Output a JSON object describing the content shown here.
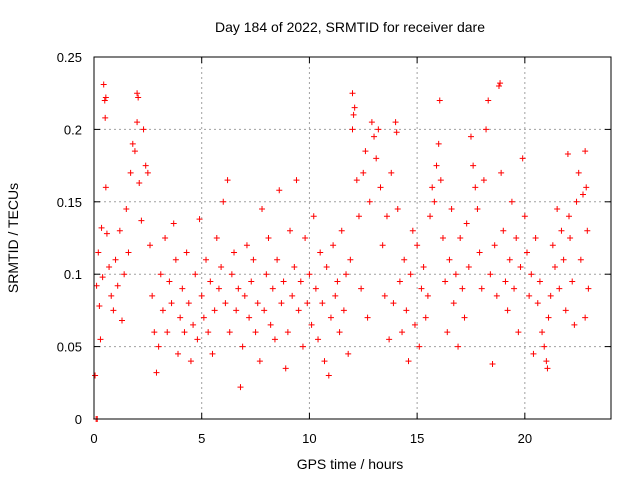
{
  "chart_data": {
    "type": "scatter",
    "title": "Day 184 of 2022, SRMTID for receiver dare",
    "xlabel": "GPS time / hours",
    "ylabel": "SRMTID / TECUs",
    "xlim": [
      0,
      24
    ],
    "ylim": [
      0,
      0.25
    ],
    "grid": true,
    "marker": "plus",
    "color": "#ff0000",
    "x_ticks": [
      {
        "value": 0,
        "label": "0"
      },
      {
        "value": 5,
        "label": "5"
      },
      {
        "value": 10,
        "label": "10"
      },
      {
        "value": 15,
        "label": "15"
      },
      {
        "value": 20,
        "label": "20"
      }
    ],
    "y_ticks": [
      {
        "value": 0,
        "label": "0"
      },
      {
        "value": 0.05,
        "label": "0.05"
      },
      {
        "value": 0.1,
        "label": "0.1"
      },
      {
        "value": 0.15,
        "label": "0.15"
      },
      {
        "value": 0.2,
        "label": "0.2"
      },
      {
        "value": 0.25,
        "label": "0.25"
      }
    ],
    "series": [
      {
        "name": "SRMTID",
        "points": [
          [
            0.05,
            0.03
          ],
          [
            0.1,
            0.0
          ],
          [
            0.15,
            0.0
          ],
          [
            0.12,
            0.092
          ],
          [
            0.2,
            0.115
          ],
          [
            0.25,
            0.078
          ],
          [
            0.3,
            0.055
          ],
          [
            0.35,
            0.132
          ],
          [
            0.4,
            0.098
          ],
          [
            0.45,
            0.231
          ],
          [
            0.5,
            0.22
          ],
          [
            0.55,
            0.222
          ],
          [
            0.52,
            0.208
          ],
          [
            0.55,
            0.16
          ],
          [
            0.6,
            0.128
          ],
          [
            0.7,
            0.105
          ],
          [
            0.8,
            0.085
          ],
          [
            0.9,
            0.075
          ],
          [
            1.0,
            0.11
          ],
          [
            1.1,
            0.092
          ],
          [
            1.2,
            0.13
          ],
          [
            1.3,
            0.068
          ],
          [
            1.4,
            0.1
          ],
          [
            1.5,
            0.145
          ],
          [
            1.6,
            0.115
          ],
          [
            1.7,
            0.17
          ],
          [
            1.8,
            0.19
          ],
          [
            1.9,
            0.185
          ],
          [
            2.0,
            0.225
          ],
          [
            2.05,
            0.222
          ],
          [
            2.0,
            0.205
          ],
          [
            2.1,
            0.163
          ],
          [
            2.2,
            0.137
          ],
          [
            2.3,
            0.2
          ],
          [
            2.4,
            0.175
          ],
          [
            2.5,
            0.17
          ],
          [
            2.6,
            0.12
          ],
          [
            2.7,
            0.085
          ],
          [
            2.8,
            0.06
          ],
          [
            2.9,
            0.032
          ],
          [
            3.0,
            0.05
          ],
          [
            3.1,
            0.1
          ],
          [
            3.2,
            0.075
          ],
          [
            3.3,
            0.125
          ],
          [
            3.4,
            0.06
          ],
          [
            3.5,
            0.095
          ],
          [
            3.6,
            0.08
          ],
          [
            3.7,
            0.135
          ],
          [
            3.8,
            0.11
          ],
          [
            3.9,
            0.045
          ],
          [
            4.0,
            0.07
          ],
          [
            4.1,
            0.09
          ],
          [
            4.2,
            0.06
          ],
          [
            4.3,
            0.115
          ],
          [
            4.4,
            0.08
          ],
          [
            4.5,
            0.04
          ],
          [
            4.6,
            0.065
          ],
          [
            4.7,
            0.1
          ],
          [
            4.8,
            0.055
          ],
          [
            4.9,
            0.138
          ],
          [
            5.0,
            0.085
          ],
          [
            5.1,
            0.07
          ],
          [
            5.2,
            0.11
          ],
          [
            5.3,
            0.06
          ],
          [
            5.4,
            0.095
          ],
          [
            5.5,
            0.045
          ],
          [
            5.6,
            0.075
          ],
          [
            5.7,
            0.125
          ],
          [
            5.8,
            0.09
          ],
          [
            5.9,
            0.105
          ],
          [
            6.0,
            0.15
          ],
          [
            6.1,
            0.08
          ],
          [
            6.2,
            0.165
          ],
          [
            6.3,
            0.06
          ],
          [
            6.4,
            0.1
          ],
          [
            6.5,
            0.115
          ],
          [
            6.6,
            0.075
          ],
          [
            6.7,
            0.09
          ],
          [
            6.8,
            0.022
          ],
          [
            6.9,
            0.05
          ],
          [
            7.0,
            0.085
          ],
          [
            7.1,
            0.12
          ],
          [
            7.2,
            0.07
          ],
          [
            7.3,
            0.095
          ],
          [
            7.4,
            0.11
          ],
          [
            7.5,
            0.06
          ],
          [
            7.6,
            0.08
          ],
          [
            7.7,
            0.04
          ],
          [
            7.8,
            0.145
          ],
          [
            7.9,
            0.075
          ],
          [
            8.0,
            0.1
          ],
          [
            8.1,
            0.125
          ],
          [
            8.2,
            0.065
          ],
          [
            8.3,
            0.09
          ],
          [
            8.4,
            0.055
          ],
          [
            8.5,
            0.11
          ],
          [
            8.6,
            0.158
          ],
          [
            8.7,
            0.08
          ],
          [
            8.8,
            0.095
          ],
          [
            8.9,
            0.035
          ],
          [
            9.0,
            0.06
          ],
          [
            9.1,
            0.13
          ],
          [
            9.2,
            0.085
          ],
          [
            9.3,
            0.105
          ],
          [
            9.4,
            0.165
          ],
          [
            9.5,
            0.075
          ],
          [
            9.6,
            0.095
          ],
          [
            9.7,
            0.05
          ],
          [
            9.8,
            0.125
          ],
          [
            9.9,
            0.08
          ],
          [
            10.0,
            0.1
          ],
          [
            10.1,
            0.065
          ],
          [
            10.2,
            0.14
          ],
          [
            10.3,
            0.09
          ],
          [
            10.4,
            0.055
          ],
          [
            10.5,
            0.115
          ],
          [
            10.6,
            0.08
          ],
          [
            10.7,
            0.04
          ],
          [
            10.8,
            0.105
          ],
          [
            10.9,
            0.03
          ],
          [
            11.0,
            0.07
          ],
          [
            11.1,
            0.12
          ],
          [
            11.2,
            0.085
          ],
          [
            11.3,
            0.095
          ],
          [
            11.4,
            0.06
          ],
          [
            11.5,
            0.13
          ],
          [
            11.6,
            0.075
          ],
          [
            11.7,
            0.1
          ],
          [
            11.8,
            0.045
          ],
          [
            11.9,
            0.11
          ],
          [
            12.0,
            0.225
          ],
          [
            12.05,
            0.21
          ],
          [
            12.1,
            0.215
          ],
          [
            12.0,
            0.2
          ],
          [
            12.2,
            0.165
          ],
          [
            12.3,
            0.14
          ],
          [
            12.4,
            0.09
          ],
          [
            12.5,
            0.17
          ],
          [
            12.6,
            0.185
          ],
          [
            12.7,
            0.07
          ],
          [
            12.8,
            0.15
          ],
          [
            12.9,
            0.205
          ],
          [
            13.0,
            0.195
          ],
          [
            13.1,
            0.18
          ],
          [
            13.2,
            0.2
          ],
          [
            13.3,
            0.16
          ],
          [
            13.4,
            0.12
          ],
          [
            13.5,
            0.085
          ],
          [
            13.6,
            0.14
          ],
          [
            13.7,
            0.055
          ],
          [
            13.8,
            0.17
          ],
          [
            13.9,
            0.08
          ],
          [
            14.0,
            0.205
          ],
          [
            14.05,
            0.198
          ],
          [
            14.1,
            0.145
          ],
          [
            14.2,
            0.095
          ],
          [
            14.3,
            0.06
          ],
          [
            14.4,
            0.11
          ],
          [
            14.5,
            0.075
          ],
          [
            14.6,
            0.04
          ],
          [
            14.7,
            0.1
          ],
          [
            14.8,
            0.13
          ],
          [
            14.9,
            0.065
          ],
          [
            15.0,
            0.12
          ],
          [
            15.1,
            0.05
          ],
          [
            15.2,
            0.09
          ],
          [
            15.3,
            0.105
          ],
          [
            15.4,
            0.07
          ],
          [
            15.5,
            0.085
          ],
          [
            15.6,
            0.14
          ],
          [
            15.7,
            0.16
          ],
          [
            15.8,
            0.15
          ],
          [
            15.9,
            0.175
          ],
          [
            16.0,
            0.19
          ],
          [
            16.05,
            0.22
          ],
          [
            16.1,
            0.165
          ],
          [
            16.2,
            0.125
          ],
          [
            16.3,
            0.095
          ],
          [
            16.4,
            0.06
          ],
          [
            16.5,
            0.11
          ],
          [
            16.6,
            0.145
          ],
          [
            16.7,
            0.08
          ],
          [
            16.8,
            0.1
          ],
          [
            16.9,
            0.05
          ],
          [
            17.0,
            0.125
          ],
          [
            17.1,
            0.09
          ],
          [
            17.2,
            0.07
          ],
          [
            17.3,
            0.135
          ],
          [
            17.4,
            0.105
          ],
          [
            17.5,
            0.195
          ],
          [
            17.6,
            0.175
          ],
          [
            17.7,
            0.16
          ],
          [
            17.8,
            0.145
          ],
          [
            17.9,
            0.115
          ],
          [
            18.0,
            0.09
          ],
          [
            18.1,
            0.165
          ],
          [
            18.2,
            0.2
          ],
          [
            18.3,
            0.22
          ],
          [
            18.4,
            0.1
          ],
          [
            18.5,
            0.038
          ],
          [
            18.6,
            0.12
          ],
          [
            18.7,
            0.085
          ],
          [
            18.8,
            0.23
          ],
          [
            18.85,
            0.232
          ],
          [
            18.9,
            0.17
          ],
          [
            19.0,
            0.13
          ],
          [
            19.1,
            0.095
          ],
          [
            19.2,
            0.075
          ],
          [
            19.3,
            0.11
          ],
          [
            19.4,
            0.15
          ],
          [
            19.5,
            0.09
          ],
          [
            19.6,
            0.125
          ],
          [
            19.7,
            0.06
          ],
          [
            19.8,
            0.105
          ],
          [
            19.9,
            0.18
          ],
          [
            20.0,
            0.14
          ],
          [
            20.1,
            0.115
          ],
          [
            20.2,
            0.085
          ],
          [
            20.3,
            0.1
          ],
          [
            20.4,
            0.045
          ],
          [
            20.5,
            0.125
          ],
          [
            20.6,
            0.08
          ],
          [
            20.7,
            0.095
          ],
          [
            20.8,
            0.06
          ],
          [
            20.9,
            0.05
          ],
          [
            21.0,
            0.04
          ],
          [
            21.05,
            0.035
          ],
          [
            21.1,
            0.07
          ],
          [
            21.2,
            0.085
          ],
          [
            21.3,
            0.12
          ],
          [
            21.4,
            0.105
          ],
          [
            21.5,
            0.145
          ],
          [
            21.6,
            0.09
          ],
          [
            21.7,
            0.13
          ],
          [
            21.8,
            0.11
          ],
          [
            21.9,
            0.075
          ],
          [
            22.0,
            0.183
          ],
          [
            22.05,
            0.14
          ],
          [
            22.1,
            0.125
          ],
          [
            22.2,
            0.095
          ],
          [
            22.3,
            0.065
          ],
          [
            22.4,
            0.15
          ],
          [
            22.5,
            0.17
          ],
          [
            22.6,
            0.11
          ],
          [
            22.7,
            0.155
          ],
          [
            22.8,
            0.185
          ],
          [
            22.85,
            0.16
          ],
          [
            22.9,
            0.13
          ],
          [
            22.95,
            0.09
          ],
          [
            22.8,
            0.07
          ]
        ]
      }
    ]
  }
}
